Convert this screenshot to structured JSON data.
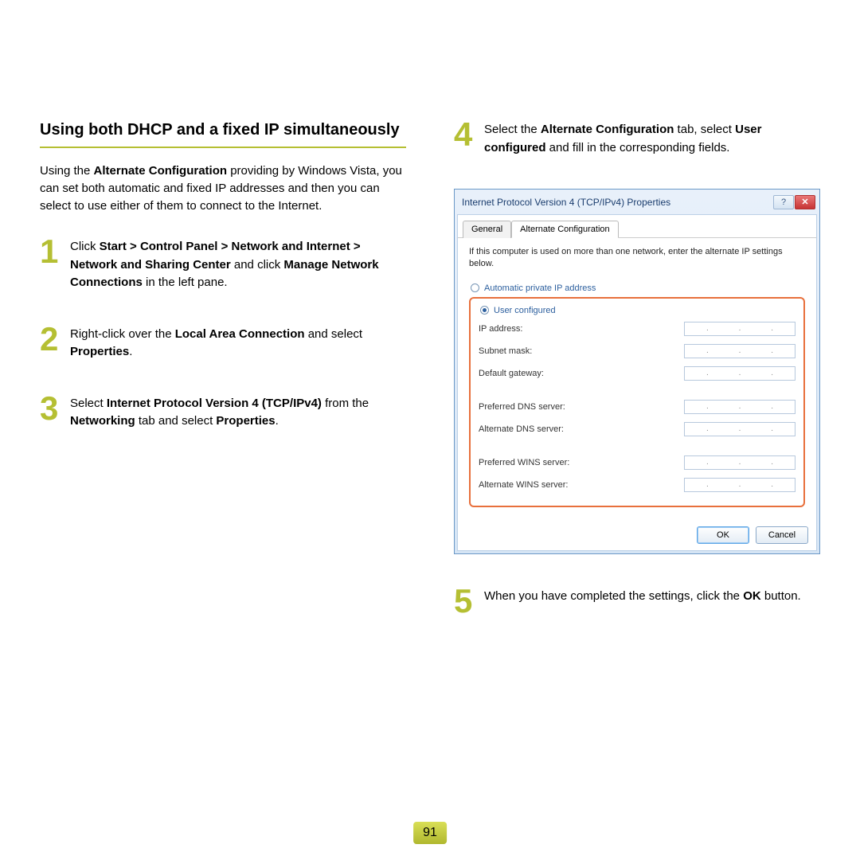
{
  "heading": "Using both DHCP and a fixed IP simultaneously",
  "intro_html": "Using the <b>Alternate Configuration</b> providing by Windows Vista, you can set both automatic and fixed IP addresses and then you can select to use either of them to connect to the Internet.",
  "accent_color": "#b5bf33",
  "steps": {
    "s1": {
      "num": "1",
      "html": "Click <b>Start > Control Panel > Network and Internet > Network and Sharing Center</b> and click <b>Manage Network Connections</b> in the left pane."
    },
    "s2": {
      "num": "2",
      "html": "Right-click over the <b>Local Area Connection</b> and select <b>Properties</b>."
    },
    "s3": {
      "num": "3",
      "html": "Select <b>Internet Protocol Version 4 (TCP/IPv4)</b> from the <b>Networking</b> tab and select <b>Properties</b>."
    },
    "s4": {
      "num": "4",
      "html": "Select the <b>Alternate Configuration</b> tab, select <b>User configured</b> and fill in the corresponding fields."
    },
    "s5": {
      "num": "5",
      "html": "When you have completed the settings, click the <b>OK</b> button."
    }
  },
  "dialog": {
    "title": "Internet Protocol Version 4 (TCP/IPv4) Properties",
    "help_glyph": "?",
    "close_glyph": "✕",
    "tabs": {
      "general": "General",
      "alt": "Alternate Configuration"
    },
    "desc": "If this computer is used on more than one network, enter the alternate IP settings below.",
    "radio_auto": "Automatic private IP address",
    "radio_user": "User configured",
    "fields": {
      "ip": "IP address:",
      "subnet": "Subnet mask:",
      "gateway": "Default gateway:",
      "pdns": "Preferred DNS server:",
      "adns": "Alternate DNS server:",
      "pwins": "Preferred WINS server:",
      "awins": "Alternate WINS server:"
    },
    "ok": "OK",
    "cancel": "Cancel",
    "highlight_color": "#e8703c"
  },
  "page_number": "91"
}
